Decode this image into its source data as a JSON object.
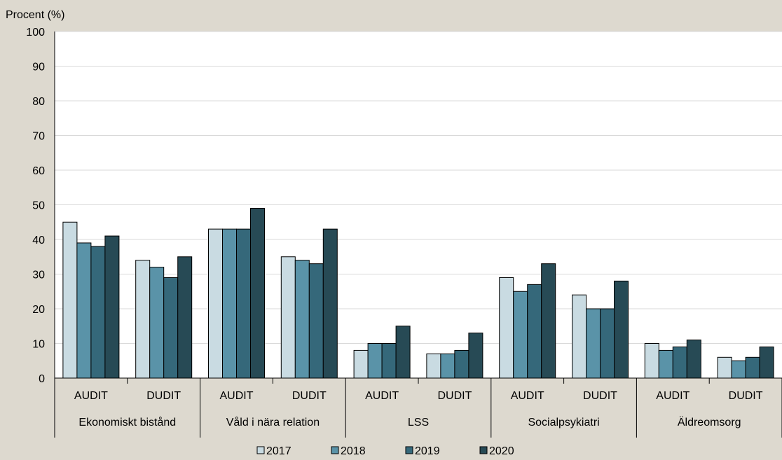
{
  "chart_data": {
    "type": "bar",
    "ylabel": "Procent (%)",
    "ylim": [
      0,
      100
    ],
    "yticks": [
      0,
      10,
      20,
      30,
      40,
      50,
      60,
      70,
      80,
      90,
      100
    ],
    "grid": true,
    "legend_position": "bottom",
    "groups": [
      {
        "name": "Ekonomiskt bistånd",
        "categories": [
          "AUDIT",
          "DUDIT"
        ]
      },
      {
        "name": "Våld i nära relation",
        "categories": [
          "AUDIT",
          "DUDIT"
        ]
      },
      {
        "name": "LSS",
        "categories": [
          "AUDIT",
          "DUDIT"
        ]
      },
      {
        "name": "Socialpsykiatri",
        "categories": [
          "AUDIT",
          "DUDIT"
        ]
      },
      {
        "name": "Äldreomsorg",
        "categories": [
          "AUDIT",
          "DUDIT"
        ]
      }
    ],
    "categories": [
      "AUDIT",
      "DUDIT",
      "AUDIT",
      "DUDIT",
      "AUDIT",
      "DUDIT",
      "AUDIT",
      "DUDIT",
      "AUDIT",
      "DUDIT"
    ],
    "series": [
      {
        "name": "2017",
        "color": "#c9dbe2",
        "values": [
          45,
          34,
          43,
          35,
          8,
          7,
          29,
          24,
          10,
          6
        ]
      },
      {
        "name": "2018",
        "color": "#5a93a8",
        "values": [
          39,
          32,
          43,
          34,
          10,
          7,
          25,
          20,
          8,
          5
        ]
      },
      {
        "name": "2019",
        "color": "#35687a",
        "values": [
          38,
          29,
          43,
          33,
          10,
          8,
          27,
          20,
          9,
          6
        ]
      },
      {
        "name": "2020",
        "color": "#274a55",
        "values": [
          41,
          35,
          49,
          43,
          15,
          13,
          33,
          28,
          11,
          9
        ]
      }
    ]
  }
}
